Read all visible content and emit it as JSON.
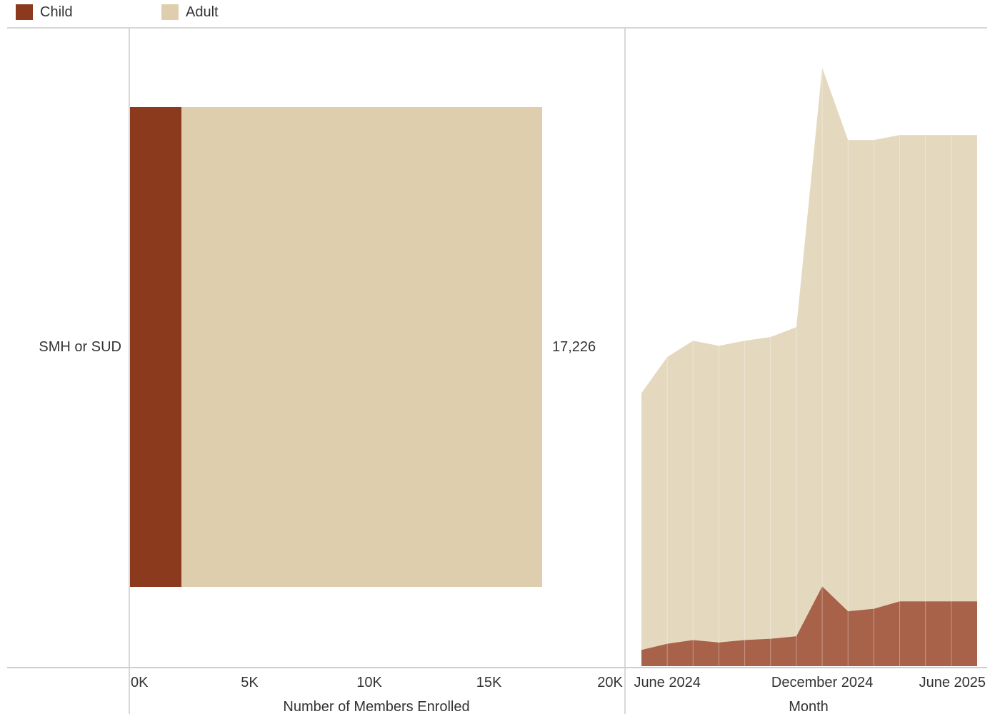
{
  "legend": {
    "items": [
      {
        "label": "Child",
        "color": "#8B3A1E"
      },
      {
        "label": "Adult",
        "color": "#DECEAD"
      }
    ]
  },
  "chart_data": [
    {
      "type": "bar",
      "orientation": "horizontal",
      "stacked": true,
      "categories": [
        "SMH or SUD"
      ],
      "series": [
        {
          "name": "Child",
          "values": [
            2150
          ],
          "color": "#8B3A1E"
        },
        {
          "name": "Adult",
          "values": [
            15076
          ],
          "color": "#DECEAD"
        }
      ],
      "total_labels": [
        "17,226"
      ],
      "xlabel": "Number of Members Enrolled",
      "xlim": [
        0,
        20000
      ],
      "xticks": [
        "0K",
        "5K",
        "10K",
        "15K",
        "20K"
      ]
    },
    {
      "type": "area",
      "stacked": true,
      "x": [
        "2024-05",
        "2024-06",
        "2024-07",
        "2024-08",
        "2024-09",
        "2024-10",
        "2024-11",
        "2024-12",
        "2025-01",
        "2025-02",
        "2025-03",
        "2025-04",
        "2025-05",
        "2025-06"
      ],
      "series": [
        {
          "name": "Child",
          "values": [
            650,
            900,
            1050,
            950,
            1050,
            1100,
            1200,
            3200,
            2200,
            2300,
            2600,
            2600,
            2600,
            2600
          ],
          "color": "#A8624A"
        },
        {
          "name": "Adult",
          "values": [
            10300,
            11500,
            12000,
            11900,
            12000,
            12100,
            12400,
            20800,
            18900,
            18800,
            18700,
            18700,
            18700,
            18700
          ],
          "color": "#E4D9BF"
        }
      ],
      "ylim": [
        0,
        25600
      ],
      "xlabel": "Month",
      "xticks": [
        "June 2024",
        "December 2024",
        "June 2025"
      ]
    }
  ]
}
